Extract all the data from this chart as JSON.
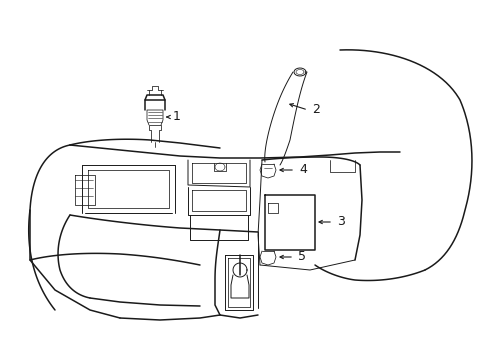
{
  "bg_color": "#ffffff",
  "line_color": "#1a1a1a",
  "lw_main": 1.1,
  "lw_thin": 0.7,
  "lw_detail": 0.55,
  "label_fontsize": 9,
  "arrow_fontsize": 7
}
